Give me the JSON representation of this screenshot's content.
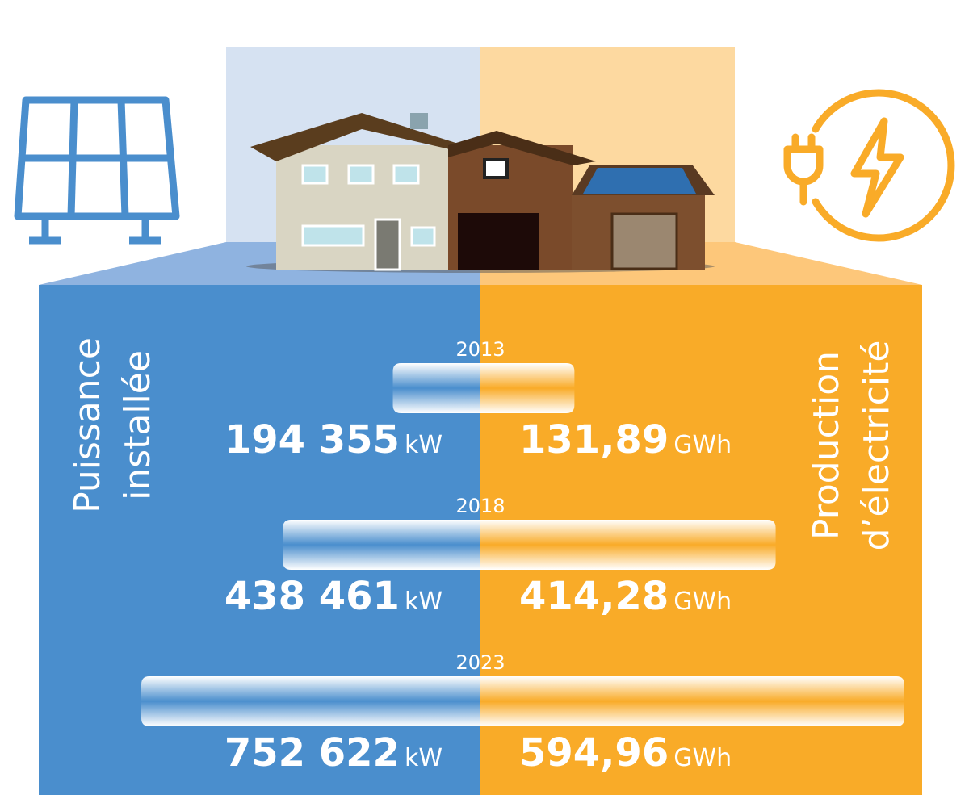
{
  "chart_data": {
    "type": "butterfly",
    "categories": [
      "2013",
      "2018",
      "2023"
    ],
    "series": [
      {
        "name": "Puissance installée",
        "color": "#4a8ecd",
        "unit": "kW",
        "values": [
          194355,
          438461,
          752622
        ],
        "value_labels": [
          "194 355",
          "438 461",
          "752 622"
        ]
      },
      {
        "name": "Production d’électricité",
        "color": "#f9ab28",
        "unit": "GWh",
        "values": [
          131.89,
          414.28,
          594.96
        ],
        "value_labels": [
          "131,89",
          "414,28",
          "594,96"
        ]
      }
    ]
  }
}
